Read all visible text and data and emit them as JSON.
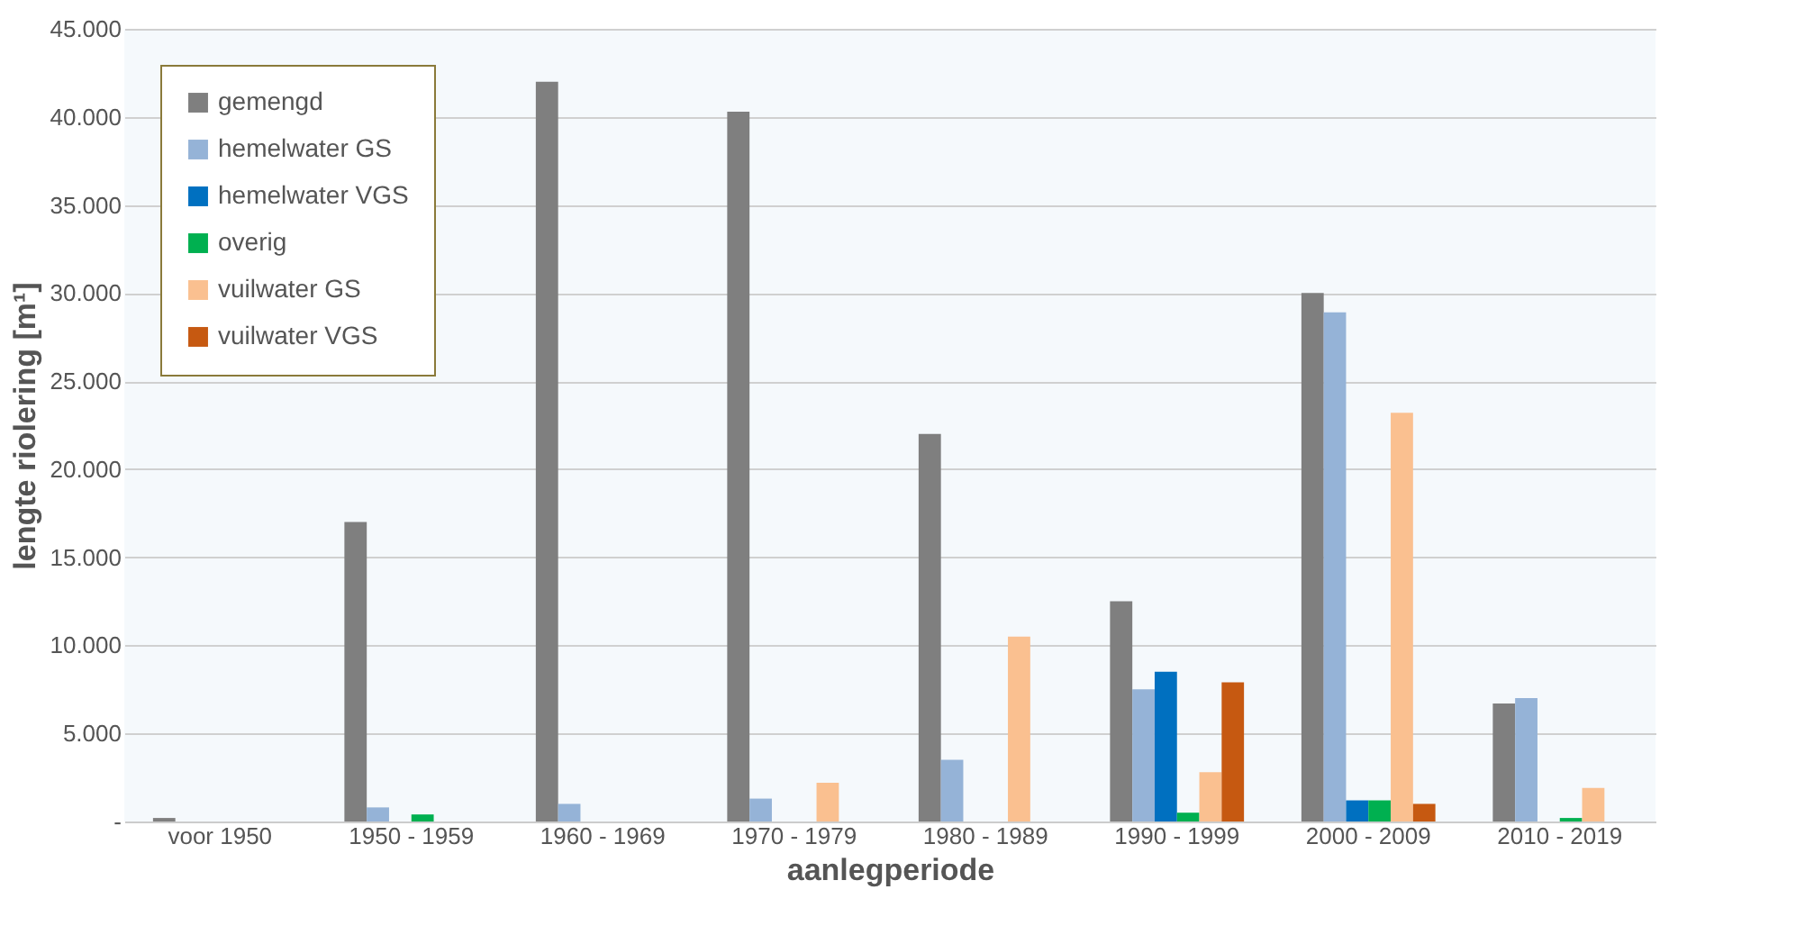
{
  "chart_data": {
    "type": "bar",
    "xlabel": "aanlegperiode",
    "ylabel": "lengte riolering [m¹]",
    "categories": [
      "voor 1950",
      "1950 - 1959",
      "1960 - 1969",
      "1970 - 1979",
      "1980 - 1989",
      "1990 - 1999",
      "2000 - 2009",
      "2010 - 2019"
    ],
    "series": [
      {
        "name": "gemengd",
        "color": "#7f7f7f",
        "values": [
          200,
          17000,
          42000,
          40300,
          22000,
          12500,
          30000,
          6700
        ]
      },
      {
        "name": "hemelwater GS",
        "color": "#95b3d7",
        "values": [
          0,
          800,
          1000,
          1300,
          3500,
          7500,
          28900,
          7000
        ]
      },
      {
        "name": "hemelwater VGS",
        "color": "#0070c0",
        "values": [
          0,
          0,
          0,
          0,
          0,
          8500,
          1200,
          0
        ]
      },
      {
        "name": "overig",
        "color": "#00b050",
        "values": [
          0,
          400,
          0,
          0,
          0,
          500,
          1200,
          200
        ]
      },
      {
        "name": "vuilwater GS",
        "color": "#fac090",
        "values": [
          0,
          0,
          0,
          2200,
          10500,
          2800,
          23200,
          1900
        ]
      },
      {
        "name": "vuilwater VGS",
        "color": "#c65911",
        "values": [
          0,
          0,
          0,
          0,
          0,
          7900,
          1000,
          0
        ]
      }
    ],
    "ylim": [
      0,
      45000
    ],
    "yticks": [
      {
        "value": 0,
        "label": "-"
      },
      {
        "value": 5000,
        "label": "5.000"
      },
      {
        "value": 10000,
        "label": "10.000"
      },
      {
        "value": 15000,
        "label": "15.000"
      },
      {
        "value": 20000,
        "label": "20.000"
      },
      {
        "value": 25000,
        "label": "25.000"
      },
      {
        "value": 30000,
        "label": "30.000"
      },
      {
        "value": 35000,
        "label": "35.000"
      },
      {
        "value": 40000,
        "label": "40.000"
      },
      {
        "value": 45000,
        "label": "45.000"
      }
    ],
    "grid": "y",
    "legend": "top left"
  }
}
